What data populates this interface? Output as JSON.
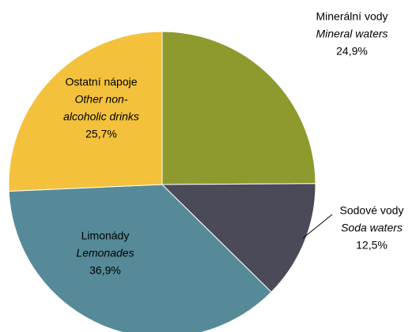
{
  "chart_data": {
    "type": "pie",
    "categories": [
      "Minerální vody",
      "Sodové vody",
      "Limonády",
      "Ostatní nápoje"
    ],
    "categories_en": [
      [
        "Mineral waters"
      ],
      [
        "Soda waters"
      ],
      [
        "Lemonades"
      ],
      [
        "Other non-",
        "alcoholic drinks"
      ]
    ],
    "values": [
      24.9,
      12.5,
      36.9,
      25.7
    ],
    "value_labels": [
      "24,9%",
      "12,5%",
      "36,9%",
      "25,7%"
    ],
    "colors": [
      "#8e9a2d",
      "#4a4a58",
      "#568a98",
      "#f3c13c"
    ]
  }
}
